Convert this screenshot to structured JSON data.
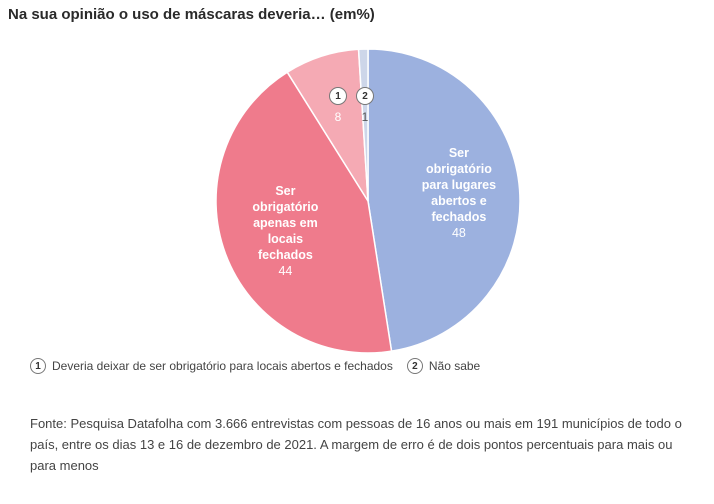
{
  "title": "Na sua opinião o uso de máscaras deveria… (em%)",
  "chart_data": {
    "type": "pie",
    "title": "Na sua opinião o uso de máscaras deveria… (em%)",
    "slices": [
      {
        "label": [
          "Ser",
          "obrigatório",
          "para lugares",
          "abertos e",
          "fechados"
        ],
        "value": 48,
        "color": "#9cb1df"
      },
      {
        "label": [
          "Ser",
          "obrigatório",
          "apenas em",
          "locais",
          "fechados"
        ],
        "value": 44,
        "color": "#ef7b8c"
      },
      {
        "label": [],
        "badge": "1",
        "value": 8,
        "color": "#f5aab4"
      },
      {
        "label": [],
        "badge": "2",
        "value": 1,
        "color": "#cdd6e9"
      }
    ]
  },
  "legend": [
    {
      "badge": "1",
      "text": "Deveria deixar de ser obrigatório para locais abertos e fechados"
    },
    {
      "badge": "2",
      "text": "Não sabe"
    }
  ],
  "source": "Fonte: Pesquisa Datafolha com 3.666 entrevistas com pessoas de 16 anos ou mais em 191 municípios de todo o país, entre os dias 13 e 16 de dezembro de 2021. A margem de erro é de dois pontos percentuais para mais ou para menos"
}
